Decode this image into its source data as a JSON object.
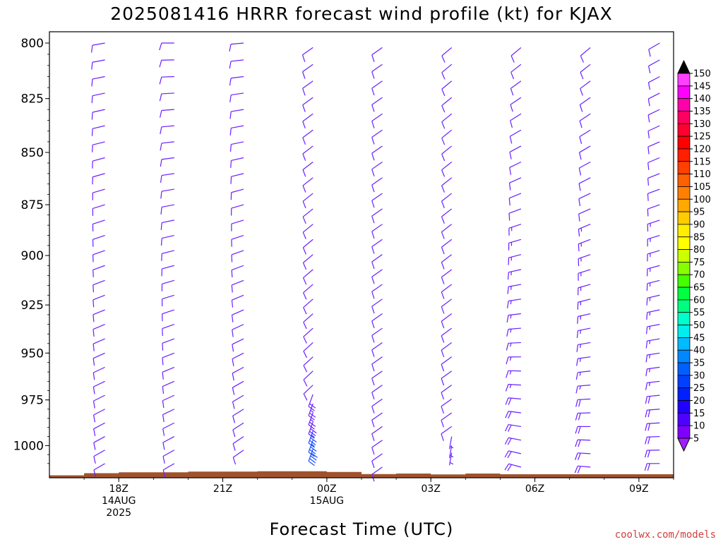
{
  "chart_data": {
    "type": "wind_profile",
    "title": "2025081416 HRRR forecast wind profile (kt) for KJAX",
    "xlabel": "Forecast Time (UTC)",
    "y_axis": {
      "ticks": [
        800,
        825,
        850,
        875,
        900,
        925,
        950,
        975,
        1000
      ],
      "range": [
        795,
        1018
      ],
      "units": "hPa"
    },
    "x_axis": {
      "range_hours": [
        16.0,
        34.0
      ],
      "ticks": [
        {
          "hour": 18,
          "lines": [
            "18Z",
            "14AUG",
            "2025"
          ]
        },
        {
          "hour": 21,
          "lines": [
            "21Z"
          ]
        },
        {
          "hour": 24,
          "lines": [
            "00Z",
            "15AUG"
          ]
        },
        {
          "hour": 27,
          "lines": [
            "03Z"
          ]
        },
        {
          "hour": 30,
          "lines": [
            "06Z"
          ]
        },
        {
          "hour": 33,
          "lines": [
            "09Z"
          ]
        }
      ]
    },
    "columns": [
      {
        "hour": 17.6,
        "surface": 1015.4,
        "top": 800,
        "bottom": 1013,
        "speed": [
          10,
          10
        ],
        "dir": [
          260,
          240
        ]
      },
      {
        "hour": 19.6,
        "surface": 1014.5,
        "top": 800,
        "bottom": 1013,
        "speed": [
          10,
          10
        ],
        "dir": [
          270,
          240
        ]
      },
      {
        "hour": 21.6,
        "surface": 1014.2,
        "top": 800,
        "bottom": 1005,
        "speed": [
          10,
          10
        ],
        "dir": [
          265,
          235
        ]
      },
      {
        "hour": 23.6,
        "surface": 1014.6,
        "top": 802,
        "bottom": 1003,
        "speed": [
          8,
          10
        ],
        "dir": [
          235,
          225
        ]
      },
      {
        "hour": 25.6,
        "surface": 1015.6,
        "top": 802,
        "bottom": 1013,
        "speed": [
          8,
          10
        ],
        "dir": [
          235,
          235
        ]
      },
      {
        "hour": 27.6,
        "surface": 1015.8,
        "top": 802,
        "bottom": 990,
        "speed": [
          8,
          10
        ],
        "dir": [
          230,
          235
        ]
      },
      {
        "hour": 29.6,
        "surface": 1015.5,
        "top": 802,
        "bottom": 1013,
        "speed": [
          8,
          20
        ],
        "dir": [
          230,
          285
        ]
      },
      {
        "hour": 31.6,
        "surface": 1015.5,
        "top": 802,
        "bottom": 1013,
        "speed": [
          8,
          20
        ],
        "dir": [
          230,
          275
        ]
      },
      {
        "hour": 33.6,
        "surface": 1015.5,
        "top": 800,
        "bottom": 1013,
        "speed": [
          8,
          20
        ],
        "dir": [
          240,
          270
        ]
      }
    ],
    "special_barbs": {
      "column_24": {
        "hour": 23.6,
        "from": 972,
        "to": 1003,
        "speed": 35,
        "dir": 200
      },
      "column_28": {
        "hour": 27.6,
        "levels": [
          995,
          1000,
          1004
        ],
        "speed": 5,
        "dir": 190
      }
    },
    "colorbar": {
      "labels": [
        150,
        145,
        140,
        135,
        130,
        125,
        120,
        115,
        110,
        105,
        100,
        95,
        90,
        85,
        80,
        75,
        70,
        65,
        60,
        55,
        50,
        45,
        40,
        35,
        30,
        25,
        20,
        15,
        10,
        5
      ],
      "colors": [
        "#000000",
        "#ff40ff",
        "#ff00ff",
        "#ff00aa",
        "#ff0060",
        "#ff0030",
        "#ff0000",
        "#ff2000",
        "#ff4000",
        "#ff6000",
        "#ff8000",
        "#ffaa00",
        "#ffcc00",
        "#ffee00",
        "#ffff00",
        "#ccff00",
        "#88ff00",
        "#44ff00",
        "#00ff40",
        "#00ff80",
        "#00ffcc",
        "#00eeee",
        "#00bbff",
        "#0088ff",
        "#0060ff",
        "#0040ff",
        "#0020ff",
        "#2000ff",
        "#5000ff",
        "#8000ff",
        "#a020ff"
      ]
    },
    "colors": {
      "terrain": "#a0522d",
      "barb_default": "#6a1fff",
      "barb_strong": "#1a50ff"
    }
  },
  "credit": "coolwx.com/models"
}
